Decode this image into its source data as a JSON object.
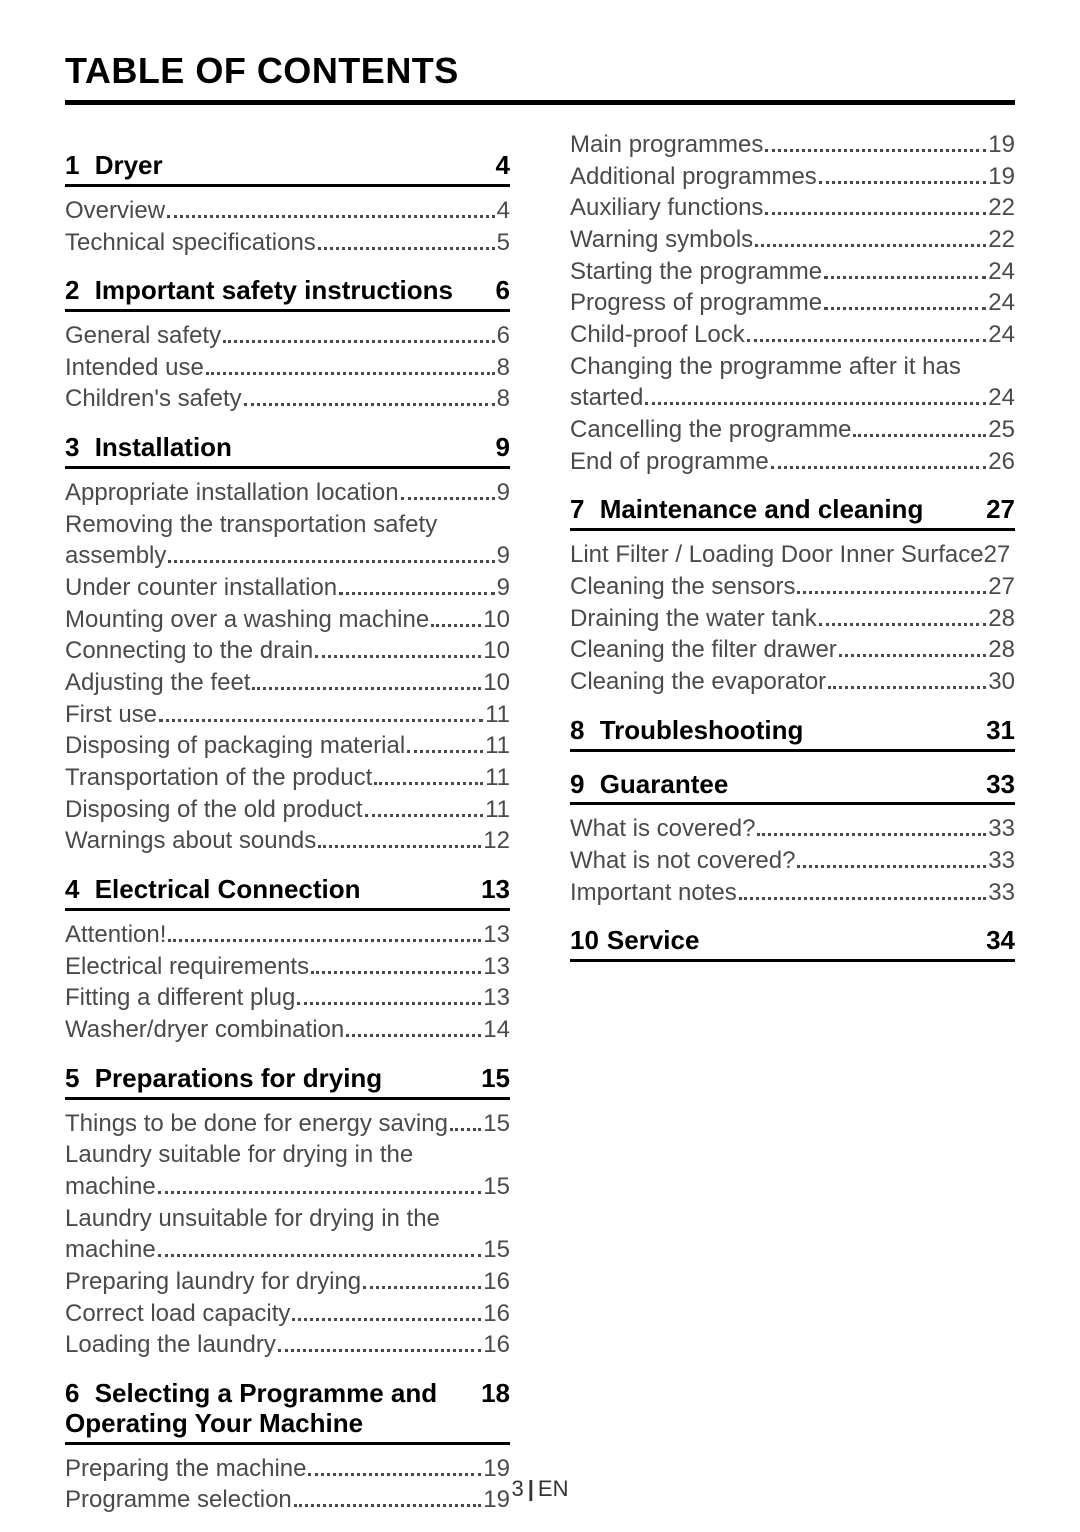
{
  "title": "TABLE OF CONTENTS",
  "footer": {
    "page": "3",
    "lang": "EN"
  },
  "colors": {
    "text": "#000000",
    "body": "#4a4a4a",
    "bg": "#ffffff"
  },
  "leftSections": [
    {
      "num": "1",
      "title": "Dryer",
      "page": "4",
      "entries": [
        {
          "text": "Overview",
          "page": "4"
        },
        {
          "text": "Technical specifications",
          "page": "5"
        }
      ]
    },
    {
      "num": "2",
      "title": "Important safety instructions",
      "page": "6",
      "entries": [
        {
          "text": "General safety",
          "page": "6"
        },
        {
          "text": "Intended use",
          "page": "8"
        },
        {
          "text": "Children's safety",
          "page": "8"
        }
      ]
    },
    {
      "num": "3",
      "title": "Installation",
      "page": "9",
      "entries": [
        {
          "text": "Appropriate installation location",
          "page": "9"
        },
        {
          "line1": "Removing the transportation safety",
          "line2": "assembly",
          "page": "9"
        },
        {
          "text": "Under counter installation",
          "page": "9"
        },
        {
          "text": "Mounting over a washing machine",
          "page": "10"
        },
        {
          "text": "Connecting to the drain",
          "page": "10"
        },
        {
          "text": "Adjusting the feet",
          "page": "10"
        },
        {
          "text": "First use",
          "page": "11"
        },
        {
          "text": "Disposing of packaging material",
          "page": "11"
        },
        {
          "text": "Transportation of the product",
          "page": "11"
        },
        {
          "text": "Disposing of the old product",
          "page": "11"
        },
        {
          "text": "Warnings about sounds",
          "page": "12"
        }
      ]
    },
    {
      "num": "4",
      "title": "Electrical Connection",
      "page": "13",
      "entries": [
        {
          "text": "Attention!",
          "page": "13"
        },
        {
          "text": "Electrical requirements",
          "page": "13"
        },
        {
          "text": "Fitting a different plug",
          "page": "13"
        },
        {
          "text": "Washer/dryer combination",
          "page": "14"
        }
      ]
    },
    {
      "num": "5",
      "title": "Preparations for drying",
      "page": "15",
      "entries": [
        {
          "text": "Things to be done for energy saving",
          "page": "15",
          "tight": true
        },
        {
          "line1": "Laundry suitable for drying in the",
          "line2": "machine",
          "page": "15"
        },
        {
          "line1": "Laundry unsuitable for drying in the",
          "line2": "machine",
          "page": "15"
        },
        {
          "text": "Preparing laundry for drying",
          "page": "16"
        },
        {
          "text": "Correct load capacity",
          "page": "16"
        },
        {
          "text": "Loading the laundry",
          "page": "16"
        }
      ]
    },
    {
      "num": "6",
      "title": "Selecting a Programme and Operating Your Machine",
      "page": "18",
      "entries": [
        {
          "text": "Preparing the machine",
          "page": "19"
        },
        {
          "text": "Programme selection",
          "page": "19"
        }
      ]
    }
  ],
  "rightLeadEntries": [
    {
      "text": "Main programmes",
      "page": "19"
    },
    {
      "text": "Additional programmes",
      "page": "19"
    },
    {
      "text": "Auxiliary functions",
      "page": "22"
    },
    {
      "text": "Warning symbols",
      "page": "22"
    },
    {
      "text": "Starting the programme",
      "page": "24"
    },
    {
      "text": "Progress of programme",
      "page": "24"
    },
    {
      "text": "Child-proof Lock",
      "page": "24"
    },
    {
      "line1": "Changing the programme after it has",
      "line2": "started",
      "page": "24"
    },
    {
      "text": "Cancelling the programme",
      "page": "25"
    },
    {
      "text": "End of programme",
      "page": "26"
    }
  ],
  "rightSections": [
    {
      "num": "7",
      "title": "Maintenance and cleaning",
      "page": "27",
      "entries": [
        {
          "text": "Lint Filter / Loading Door Inner Surface",
          "page": "27",
          "nodots": true
        },
        {
          "text": "Cleaning the sensors",
          "page": "27"
        },
        {
          "text": "Draining the water tank",
          "page": "28"
        },
        {
          "text": "Cleaning the filter drawer",
          "page": "28"
        },
        {
          "text": "Cleaning the evaporator",
          "page": "30"
        }
      ]
    },
    {
      "num": "8",
      "title": "Troubleshooting",
      "page": "31",
      "entries": []
    },
    {
      "num": "9",
      "title": "Guarantee",
      "page": "33",
      "entries": [
        {
          "text": "What is covered?",
          "page": "33"
        },
        {
          "text": "What is not covered?",
          "page": "33"
        },
        {
          "text": "Important notes",
          "page": "33"
        }
      ]
    },
    {
      "num": "10",
      "title": "Service",
      "page": "34",
      "nospace": true,
      "entries": []
    }
  ]
}
